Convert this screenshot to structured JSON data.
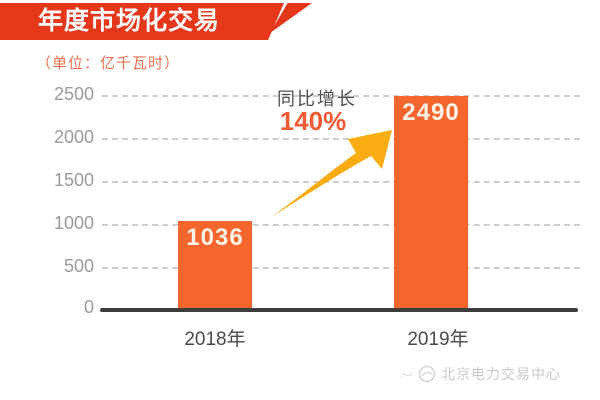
{
  "banner": {
    "title": "年度市场化交易"
  },
  "unit_label": "（单位：亿千瓦时）",
  "annotation": {
    "label": "同比增长",
    "value": "140%"
  },
  "watermark": {
    "text": "北京电力交易中心",
    "icon": "power-exchange-logo"
  },
  "colors": {
    "banner_red": "#e5381b",
    "bar_orange": "#f4662e",
    "arrow_gold": "#f9ad12",
    "growth_value_red": "#ee5b35",
    "unit_label_orange": "#ee7150",
    "tick_gray": "#9b9b9b",
    "gridline_gray": "#cdcdcd",
    "axis_dark": "#3d3d3d"
  },
  "chart_data": {
    "type": "bar",
    "title": "年度市场化交易",
    "unit_label": "（单位：亿千瓦时）",
    "categories": [
      "2018年",
      "2019年"
    ],
    "values": [
      1036,
      2490
    ],
    "xlabel": "",
    "ylabel": "",
    "ylim": [
      0,
      2500
    ],
    "yticks": [
      "2500",
      "2000",
      "1500",
      "1000",
      "500",
      "0"
    ],
    "grid": "horizontal-dashed",
    "legend": "none",
    "annotation": "同比增长 140%"
  }
}
